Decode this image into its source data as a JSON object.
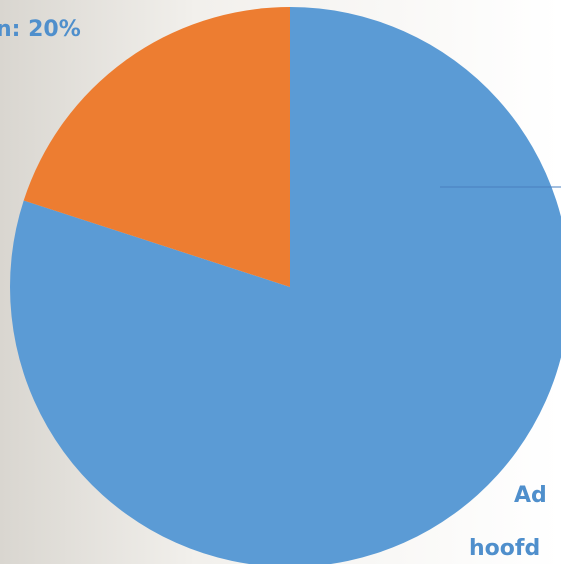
{
  "chart_data": {
    "type": "pie",
    "values": [
      80,
      20
    ],
    "colors": [
      "#5b9bd5",
      "#ed7d31"
    ],
    "annotations": [
      "n: 20%",
      "Ad",
      "hoofd"
    ]
  }
}
